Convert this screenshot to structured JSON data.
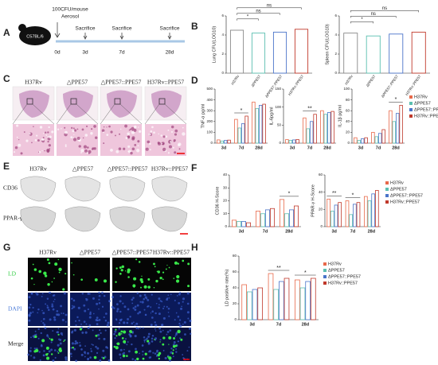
{
  "panel_labels": [
    "A",
    "B",
    "C",
    "D",
    "E",
    "F",
    "G",
    "H"
  ],
  "timeline": {
    "mouse": "C57BL/6",
    "dose": "100CFU/mouse",
    "route": "Aerosol",
    "start": "0d",
    "events": [
      {
        "label": "Sacrifice",
        "day": "3d"
      },
      {
        "label": "Sacrifice",
        "day": "7d"
      },
      {
        "label": "Sacrifice",
        "day": "28d"
      }
    ]
  },
  "histology": {
    "columns": [
      "H37Rv",
      "△PPE57",
      "△PPE57::PPE57",
      "H37Rv::PPE57"
    ]
  },
  "ihc": {
    "columns": [
      "H37Rv",
      "△PPE57",
      "△PPE57::PPE57",
      "H37Rv::PPE57"
    ],
    "rows": [
      "CD36",
      "PPAR-γ"
    ]
  },
  "fluorescence": {
    "columns": [
      "H37Rv",
      "△PPE57",
      "△PPE57::PPE57",
      "H37Rv::PPE57"
    ],
    "rows": [
      "LD",
      "DAPI",
      "Merge"
    ]
  },
  "chart_data": [
    {
      "type": "bar",
      "y_label": "Lung CFU(LOG10)",
      "categories": [
        "H37Rv",
        "ΔPPE57",
        "ΔPPE57::PPE57",
        "H37Rv::PPE57"
      ],
      "values": [
        4.5,
        4.2,
        4.3,
        4.6
      ],
      "colors": [
        "#888888",
        "#5bbfb0",
        "#4a74c9",
        "#c0392b"
      ],
      "significance": [
        null,
        "*",
        "ns",
        "ns"
      ],
      "ylim": [
        0,
        6
      ],
      "yticks": [
        0,
        2,
        4,
        6
      ]
    },
    {
      "type": "bar",
      "y_label": "Spleen CFU(LOG10)",
      "categories": [
        "H37Rv",
        "ΔPPE57",
        "ΔPPE57::PPE57",
        "H37Rv::PPE57"
      ],
      "values": [
        4.2,
        3.9,
        4.1,
        4.3
      ],
      "colors": [
        "#888888",
        "#5bbfb0",
        "#4a74c9",
        "#c0392b"
      ],
      "significance": [
        null,
        "*",
        "ns",
        "ns"
      ],
      "ylim": [
        0,
        6
      ],
      "yticks": [
        0,
        2,
        4,
        6
      ]
    },
    {
      "type": "grouped_bar",
      "y_label": "TNF-α pg/ml",
      "categories": [
        "3d",
        "7d",
        "28d"
      ],
      "ylim": [
        0,
        500
      ],
      "yticks": [
        0,
        100,
        200,
        300,
        400,
        500
      ],
      "significance": [
        null,
        "*",
        null
      ],
      "series": [
        {
          "name": "H37Rv",
          "color": "#e8694a",
          "values": [
            30,
            220,
            380
          ]
        },
        {
          "name": "ΔPPE57",
          "color": "#5bbfb0",
          "values": [
            20,
            140,
            320
          ]
        },
        {
          "name": "ΔPPE57::PPE57",
          "color": "#4a74c9",
          "values": [
            25,
            180,
            350
          ]
        },
        {
          "name": "H37Rv::PPE57",
          "color": "#c0392b",
          "values": [
            28,
            250,
            360
          ]
        }
      ]
    },
    {
      "type": "grouped_bar",
      "y_label": "IL-6pg/ml",
      "categories": [
        "3d",
        "7d",
        "28d"
      ],
      "ylim": [
        0,
        150
      ],
      "yticks": [
        0,
        50,
        100,
        150
      ],
      "significance": [
        null,
        "**",
        null
      ],
      "series": [
        {
          "name": "H37Rv",
          "color": "#e8694a",
          "values": [
            10,
            70,
            90
          ]
        },
        {
          "name": "ΔPPE57",
          "color": "#5bbfb0",
          "values": [
            8,
            40,
            80
          ]
        },
        {
          "name": "ΔPPE57::PPE57",
          "color": "#4a74c9",
          "values": [
            9,
            60,
            85
          ]
        },
        {
          "name": "H37Rv::PPE57",
          "color": "#c0392b",
          "values": [
            10,
            80,
            88
          ]
        }
      ]
    },
    {
      "type": "grouped_bar",
      "y_label": "IL-1β pg/ml",
      "categories": [
        "3d",
        "7d",
        "28d"
      ],
      "ylim": [
        0,
        100
      ],
      "yticks": [
        0,
        20,
        40,
        60,
        80,
        100
      ],
      "significance": [
        null,
        null,
        "*"
      ],
      "legend": "right",
      "series": [
        {
          "name": "H37Rv",
          "color": "#e8694a",
          "values": [
            10,
            20,
            60
          ]
        },
        {
          "name": "ΔPPE57",
          "color": "#5bbfb0",
          "values": [
            5,
            12,
            40
          ]
        },
        {
          "name": "ΔPPE57::PPE57",
          "color": "#4a74c9",
          "values": [
            8,
            18,
            55
          ]
        },
        {
          "name": "H37Rv::PPE57",
          "color": "#c0392b",
          "values": [
            10,
            25,
            70
          ]
        }
      ]
    },
    {
      "type": "grouped_bar",
      "y_label": "CD36 H-Score",
      "categories": [
        "3d",
        "7d",
        "28d"
      ],
      "ylim": [
        0,
        40
      ],
      "yticks": [
        0,
        10,
        20,
        30,
        40
      ],
      "significance": [
        null,
        null,
        "*"
      ],
      "series": [
        {
          "name": "H37Rv",
          "color": "#e8694a",
          "values": [
            5,
            12,
            21
          ]
        },
        {
          "name": "ΔPPE57",
          "color": "#5bbfb0",
          "values": [
            4,
            10,
            10
          ]
        },
        {
          "name": "ΔPPE57::PPE57",
          "color": "#4a74c9",
          "values": [
            4,
            13,
            13
          ]
        },
        {
          "name": "H37Rv::PPE57",
          "color": "#c0392b",
          "values": [
            3,
            14,
            16
          ]
        }
      ]
    },
    {
      "type": "grouped_bar",
      "y_label": "PPAR-γ H-Score",
      "categories": [
        "3d",
        "7d",
        "28d"
      ],
      "ylim": [
        0,
        60
      ],
      "yticks": [
        0,
        20,
        40,
        60
      ],
      "significance": [
        "**",
        "*",
        null
      ],
      "legend": "right",
      "series": [
        {
          "name": "H37Rv",
          "color": "#e8694a",
          "values": [
            32,
            30,
            35
          ]
        },
        {
          "name": "ΔPPE57",
          "color": "#5bbfb0",
          "values": [
            18,
            14,
            30
          ]
        },
        {
          "name": "ΔPPE57::PPE57",
          "color": "#4a74c9",
          "values": [
            25,
            26,
            38
          ]
        },
        {
          "name": "H37Rv::PPE57",
          "color": "#c0392b",
          "values": [
            28,
            28,
            42
          ]
        }
      ]
    },
    {
      "type": "grouped_bar",
      "y_label": "LD positive rate(%)",
      "categories": [
        "3d",
        "7d",
        "28d"
      ],
      "ylim": [
        0,
        80
      ],
      "yticks": [
        0,
        20,
        40,
        60,
        80
      ],
      "significance": [
        null,
        "**",
        "*"
      ],
      "legend": "right",
      "series": [
        {
          "name": "H37Rv",
          "color": "#e8694a",
          "values": [
            44,
            58,
            50
          ]
        },
        {
          "name": "ΔPPE57",
          "color": "#5bbfb0",
          "values": [
            35,
            38,
            40
          ]
        },
        {
          "name": "ΔPPE57::PPE57",
          "color": "#4a74c9",
          "values": [
            38,
            48,
            48
          ]
        },
        {
          "name": "H37Rv::PPE57",
          "color": "#c0392b",
          "values": [
            40,
            52,
            52
          ]
        }
      ]
    }
  ]
}
